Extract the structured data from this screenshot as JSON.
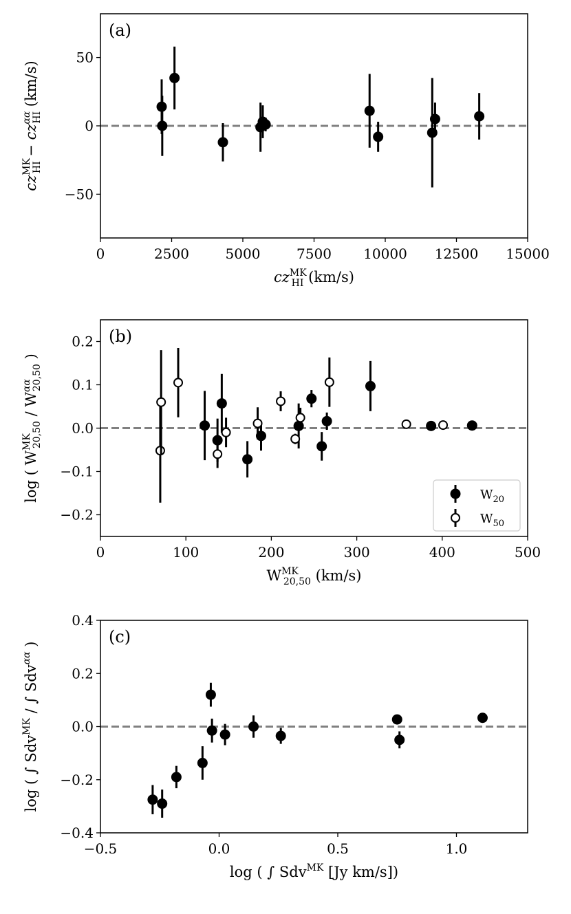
{
  "chart_data": [
    {
      "type": "scatter",
      "panel_label": "(a)",
      "xlabel": "cz_HI^MK (km/s)",
      "ylabel": "cz_HI^MK − cz_HI^αα (km/s)",
      "xlim": [
        0,
        15000
      ],
      "ylim": [
        -82,
        82
      ],
      "xticks": [
        0,
        2500,
        5000,
        7500,
        10000,
        12500,
        15000
      ],
      "yticks": [
        -50,
        0,
        50
      ],
      "ytick_labels": [
        "−50",
        "0",
        "50"
      ],
      "zero_line": true,
      "series": [
        {
          "marker": "filled",
          "x": [
            2150,
            2170,
            2600,
            4300,
            5620,
            5700,
            5800,
            9450,
            9750,
            11650,
            11750,
            13300
          ],
          "y": [
            14,
            0,
            35,
            -12,
            -1,
            3,
            1,
            11,
            -8,
            -5,
            5,
            7
          ],
          "err": [
            20,
            22,
            23,
            14,
            18,
            12,
            5,
            27,
            11,
            40,
            12,
            17
          ]
        }
      ]
    },
    {
      "type": "scatter",
      "panel_label": "(b)",
      "xlabel": "W_20,50^MK (km/s)",
      "ylabel": "log ( W_20,50^MK / W_20,50^αα )",
      "xlim": [
        0,
        500
      ],
      "ylim": [
        -0.25,
        0.25
      ],
      "xticks": [
        0,
        100,
        200,
        300,
        400,
        500
      ],
      "yticks": [
        -0.2,
        -0.1,
        0.0,
        0.1,
        0.2
      ],
      "ytick_labels": [
        "−0.2",
        "−0.1",
        "0.0",
        "0.1",
        "0.2"
      ],
      "zero_line": true,
      "legend_position": "lower-right",
      "series": [
        {
          "name": "W20",
          "marker": "filled",
          "x": [
            122,
            137,
            142,
            172,
            188,
            232,
            247,
            259,
            265,
            316,
            387,
            435
          ],
          "y": [
            0.006,
            -0.028,
            0.057,
            -0.072,
            -0.018,
            0.005,
            0.068,
            -0.042,
            0.016,
            0.097,
            0.005,
            0.006
          ],
          "err": [
            0.08,
            0.05,
            0.068,
            0.042,
            0.034,
            0.052,
            0.02,
            0.033,
            0.02,
            0.058,
            0.004,
            0.004
          ]
        },
        {
          "name": "W50",
          "marker": "open",
          "x": [
            70,
            71,
            91,
            137,
            147,
            184,
            211,
            228,
            234,
            268,
            358,
            401
          ],
          "y": [
            -0.052,
            0.06,
            0.105,
            -0.06,
            -0.01,
            0.011,
            0.062,
            -0.025,
            0.024,
            0.106,
            0.009,
            0.007
          ],
          "err": [
            0.12,
            0.12,
            0.08,
            0.032,
            0.034,
            0.037,
            0.023,
            0.012,
            0.023,
            0.057,
            0.006,
            0.006
          ]
        }
      ]
    },
    {
      "type": "scatter",
      "panel_label": "(c)",
      "xlabel": "log ( ∫ Sdv^MK [Jy km/s])",
      "ylabel": "log ( ∫ Sdv^MK / ∫ Sdv^αα )",
      "xlim": [
        -0.5,
        1.3
      ],
      "ylim": [
        -0.4,
        0.4
      ],
      "xticks": [
        -0.5,
        0.0,
        0.5,
        1.0
      ],
      "xtick_labels": [
        "−0.5",
        "0.0",
        "0.5",
        "1.0"
      ],
      "yticks": [
        -0.4,
        -0.2,
        0.0,
        0.2,
        0.4
      ],
      "ytick_labels": [
        "−0.4",
        "−0.2",
        "0.0",
        "0.2",
        "0.4"
      ],
      "zero_line": true,
      "series": [
        {
          "marker": "filled",
          "x": [
            -0.28,
            -0.24,
            -0.18,
            -0.07,
            -0.035,
            -0.03,
            0.025,
            0.145,
            0.26,
            0.75,
            0.76,
            1.11
          ],
          "y": [
            -0.275,
            -0.29,
            -0.19,
            -0.137,
            0.12,
            -0.015,
            -0.03,
            0.0,
            -0.035,
            0.027,
            -0.05,
            0.033
          ],
          "err": [
            0.055,
            0.053,
            0.042,
            0.063,
            0.045,
            0.045,
            0.04,
            0.042,
            0.03,
            0.0,
            0.032,
            0.0
          ]
        }
      ]
    }
  ]
}
